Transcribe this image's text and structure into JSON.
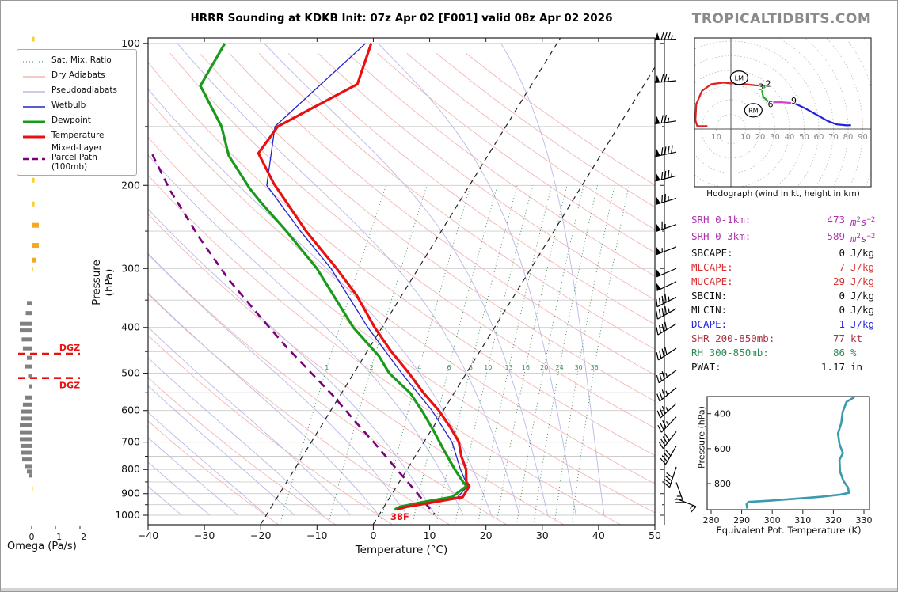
{
  "title": "HRRR Sounding at KDKB Init: 07z Apr 02 [F001] valid 08z Apr 02 2026",
  "watermark": "TROPICALTIDBITS.COM",
  "colors": {
    "temperature": "#e81010",
    "dewpoint": "#1a9a1a",
    "wetbulb": "#2222cc",
    "parcel": "#7a007a",
    "dry_adiabat": "#f2b6b6",
    "pseudoadiabat": "#b9b9e6",
    "mix_ratio": "#3a8a5a",
    "isotherm_dashed": "#222222",
    "grid": "#cccccc",
    "dgz": "#e81010",
    "omega_up": "#f7d038",
    "omega_up_strong": "#f5a623",
    "omega_down": "#808080",
    "thetae_line": "#3a9ab0",
    "hodo_seg_0_3": "#dd2222",
    "hodo_seg_3_6": "#22aa22",
    "hodo_seg_6_9": "#cc44cc",
    "hodo_seg_9_12": "#2222dd"
  },
  "legend": {
    "items": [
      {
        "label": "Sat. Mix. Ratio",
        "style": "mixratio"
      },
      {
        "label": "Dry Adiabats",
        "style": "dry"
      },
      {
        "label": "Pseudoadiabats",
        "style": "pseudo"
      },
      {
        "label": "Wetbulb",
        "style": "wetbulb"
      },
      {
        "label": "Dewpoint",
        "style": "dewpoint"
      },
      {
        "label": "Temperature",
        "style": "temperature"
      },
      {
        "label": "Mixed-Layer\nParcel Path (100mb)",
        "style": "parcel"
      }
    ]
  },
  "skewt": {
    "xlabel": "Temperature (°C)",
    "ylabel": "Pressure (hPa)",
    "x_ticks": [
      -40,
      -30,
      -20,
      -10,
      0,
      10,
      20,
      30,
      40,
      50
    ],
    "p_major_ticks": [
      100,
      200,
      300,
      400,
      500,
      600,
      700,
      800,
      900,
      1000
    ],
    "p_minor_ticks": [
      150,
      250,
      350,
      450,
      550,
      650,
      750,
      850,
      950
    ],
    "grid_pressures_step_mb": 50,
    "mix_ratio_values": [
      1,
      2,
      4,
      6,
      8,
      10,
      13,
      16,
      20,
      24,
      30,
      36
    ],
    "dashed_isotherms_c": [
      0,
      -20
    ],
    "surface_temp_label": "38F",
    "dgz_label": "DGZ",
    "dgz_pressures": [
      455,
      512
    ]
  },
  "omega": {
    "label": "Omega (Pa/s)",
    "ticks": [
      "0",
      "−1",
      "−2"
    ]
  },
  "hodograph": {
    "caption": "Hodograph (wind in kt, height in km)",
    "ring_step_kt": 10,
    "axis_labels_left": [
      "10"
    ],
    "axis_labels_right": [
      "10",
      "20",
      "30",
      "40",
      "50",
      "60",
      "70",
      "80",
      "90"
    ],
    "height_labels": {
      "1": [
        3,
        31.5
      ],
      "2": [
        25.5,
        30.5
      ],
      "3": [
        20.5,
        28.5
      ],
      "6": [
        27,
        16.5
      ],
      "9": [
        43,
        19
      ]
    },
    "storm_motion": {
      "LM": [
        5.6,
        35.0
      ],
      "RM": [
        15.3,
        12.8
      ]
    }
  },
  "stats": [
    {
      "label": "SRH 0-1km:",
      "value": "473",
      "unit": "m2s-2",
      "color": "#b030b0"
    },
    {
      "label": "SRH 0-3km:",
      "value": "589",
      "unit": "m2s-2",
      "color": "#b030b0"
    },
    {
      "label": "SBCAPE:",
      "value": "0",
      "unit": "J/kg",
      "color": "#111111"
    },
    {
      "label": "MLCAPE:",
      "value": "7",
      "unit": "J/kg",
      "color": "#d93030"
    },
    {
      "label": "MUCAPE:",
      "value": "29",
      "unit": "J/kg",
      "color": "#d93030"
    },
    {
      "label": "SBCIN:",
      "value": "0",
      "unit": "J/kg",
      "color": "#111111"
    },
    {
      "label": "MLCIN:",
      "value": "0",
      "unit": "J/kg",
      "color": "#111111"
    },
    {
      "label": "DCAPE:",
      "value": "1",
      "unit": "J/kg",
      "color": "#2828dd"
    },
    {
      "label": "SHR 200-850mb:",
      "value": "77",
      "unit": "kt",
      "color": "#aa3344"
    },
    {
      "label": "RH 300-850mb:",
      "value": "86",
      "unit": "%",
      "color": "#2e8b57"
    },
    {
      "label": "PWAT:",
      "value": "1.17",
      "unit": "in",
      "color": "#111111"
    }
  ],
  "thetae": {
    "caption": "Equivalent Pot. Temperature (K)",
    "ylabel": "Pressure (hPa)",
    "x_ticks": [
      280,
      290,
      300,
      310,
      320,
      330
    ],
    "y_ticks": [
      400,
      600,
      800
    ]
  },
  "wind_barbs": [
    {
      "p": 98,
      "kt": 85,
      "dir": 268
    },
    {
      "p": 120,
      "kt": 75,
      "dir": 265
    },
    {
      "p": 146,
      "kt": 75,
      "dir": 262
    },
    {
      "p": 170,
      "kt": 90,
      "dir": 258
    },
    {
      "p": 191,
      "kt": 85,
      "dir": 256
    },
    {
      "p": 213,
      "kt": 75,
      "dir": 253
    },
    {
      "p": 242,
      "kt": 65,
      "dir": 251
    },
    {
      "p": 270,
      "kt": 55,
      "dir": 249
    },
    {
      "p": 300,
      "kt": 50,
      "dir": 247
    },
    {
      "p": 320,
      "kt": 50,
      "dir": 245
    },
    {
      "p": 345,
      "kt": 45,
      "dir": 243
    },
    {
      "p": 365,
      "kt": 45,
      "dir": 241
    },
    {
      "p": 393,
      "kt": 40,
      "dir": 239
    },
    {
      "p": 443,
      "kt": 40,
      "dir": 237
    },
    {
      "p": 493,
      "kt": 35,
      "dir": 234
    },
    {
      "p": 537,
      "kt": 35,
      "dir": 231
    },
    {
      "p": 580,
      "kt": 35,
      "dir": 228
    },
    {
      "p": 619,
      "kt": 35,
      "dir": 224
    },
    {
      "p": 665,
      "kt": 38,
      "dir": 218
    },
    {
      "p": 713,
      "kt": 40,
      "dir": 210
    },
    {
      "p": 790,
      "kt": 40,
      "dir": 198
    },
    {
      "p": 852,
      "kt": 25,
      "dir": 160
    },
    {
      "p": 922,
      "kt": 15,
      "dir": 112
    }
  ],
  "chart_data": [
    {
      "type": "line",
      "name": "skewt_sounding",
      "title": "HRRR Sounding at KDKB",
      "xlabel": "Temperature (°C)",
      "ylabel": "Pressure (hPa)",
      "xlim": [
        -40,
        50
      ],
      "ylim_hpa": [
        100,
        1050
      ],
      "series": [
        {
          "name": "temperature_p_T",
          "points": [
            [
              100,
              -53
            ],
            [
              122,
              -51
            ],
            [
              150,
              -60.5
            ],
            [
              171,
              -61
            ],
            [
              198,
              -55
            ],
            [
              250,
              -44
            ],
            [
              300,
              -34.5
            ],
            [
              342,
              -28
            ],
            [
              400,
              -21.3
            ],
            [
              450,
              -15.7
            ],
            [
              500,
              -10.2
            ],
            [
              550,
              -5.5
            ],
            [
              600,
              -0.8
            ],
            [
              650,
              3.0
            ],
            [
              700,
              6.2
            ],
            [
              750,
              8.2
            ],
            [
              800,
              10.5
            ],
            [
              850,
              11.9
            ],
            [
              868,
              12.9
            ],
            [
              915,
              12.9
            ],
            [
              940,
              8.0
            ],
            [
              960,
              4.0
            ],
            [
              973,
              2.6
            ]
          ]
        },
        {
          "name": "dewpoint_p_T",
          "points": [
            [
              100,
              -79
            ],
            [
              123,
              -78.7
            ],
            [
              150,
              -70.5
            ],
            [
              173,
              -66
            ],
            [
              203,
              -58.7
            ],
            [
              218,
              -55
            ],
            [
              250,
              -47.5
            ],
            [
              300,
              -38
            ],
            [
              400,
              -25.1
            ],
            [
              460,
              -17.4
            ],
            [
              500,
              -13.7
            ],
            [
              552,
              -7.7
            ],
            [
              603,
              -3.6
            ],
            [
              664,
              0.6
            ],
            [
              729,
              4.5
            ],
            [
              800,
              8.5
            ],
            [
              850,
              11.3
            ],
            [
              868,
              12.4
            ],
            [
              915,
              11.0
            ],
            [
              940,
              6.0
            ],
            [
              960,
              2.8
            ],
            [
              973,
              2.2
            ]
          ]
        },
        {
          "name": "wetbulb_p_T",
          "points": [
            [
              100,
              -54
            ],
            [
              150,
              -61
            ],
            [
              200,
              -56
            ],
            [
              250,
              -45
            ],
            [
              300,
              -35.5
            ],
            [
              400,
              -22.5
            ],
            [
              500,
              -11.5
            ],
            [
              600,
              -2.0
            ],
            [
              700,
              5.0
            ],
            [
              800,
              9.5
            ],
            [
              868,
              12.6
            ],
            [
              915,
              12.0
            ],
            [
              950,
              5.0
            ],
            [
              973,
              2.4
            ]
          ]
        },
        {
          "name": "mixed_layer_parcel_p_T",
          "points": [
            [
              172,
              -79.7
            ],
            [
              205,
              -72.6
            ],
            [
              259,
              -62.1
            ],
            [
              317,
              -52.4
            ],
            [
              379,
              -42.9
            ],
            [
              441,
              -34.7
            ],
            [
              501,
              -27.4
            ],
            [
              559,
              -21.1
            ],
            [
              630,
              -14.7
            ],
            [
              707,
              -8.4
            ],
            [
              800,
              -1.8
            ],
            [
              891,
              4.0
            ],
            [
              996,
              9.8
            ]
          ]
        }
      ]
    },
    {
      "type": "line",
      "name": "hodograph_uv_kt",
      "segments": [
        {
          "layer": "0-3km",
          "color_key": "hodo_seg_0_3",
          "points": [
            [
              -16,
              2
            ],
            [
              -23,
              2
            ],
            [
              -24.2,
              6
            ],
            [
              -23.6,
              17
            ],
            [
              -19.8,
              26
            ],
            [
              -13.4,
              30.6
            ],
            [
              -5.2,
              31.7
            ],
            [
              2.9,
              30.8
            ],
            [
              9.9,
              30.6
            ],
            [
              17,
              29.8
            ],
            [
              25,
              29.6
            ]
          ]
        },
        {
          "layer": "3-6km",
          "color_key": "hodo_seg_3_6",
          "points": [
            [
              25,
              29.6
            ],
            [
              21,
              27.5
            ],
            [
              22,
              22
            ],
            [
              26.1,
              18.2
            ]
          ]
        },
        {
          "layer": "6-9km",
          "color_key": "hodo_seg_6_9",
          "points": [
            [
              26.1,
              18.2
            ],
            [
              34,
              18.3
            ],
            [
              42.9,
              17.7
            ]
          ]
        },
        {
          "layer": "9km+",
          "color_key": "hodo_seg_9_12",
          "points": [
            [
              42.9,
              17.7
            ],
            [
              50,
              14.5
            ],
            [
              58,
              10
            ],
            [
              66,
              5.5
            ],
            [
              72,
              3.2
            ],
            [
              79,
              2.5
            ],
            [
              82,
              2.6
            ]
          ]
        }
      ]
    },
    {
      "type": "line",
      "name": "equivalent_potential_temperature",
      "xlabel": "Equivalent Pot. Temperature (K)",
      "ylabel": "Pressure (hPa)",
      "xlim": [
        280,
        330
      ],
      "points_thetae_p": [
        [
          291.8,
          943
        ],
        [
          291.6,
          918
        ],
        [
          292.2,
          905
        ],
        [
          298.9,
          898
        ],
        [
          307.5,
          887
        ],
        [
          316.2,
          875
        ],
        [
          322.2,
          863
        ],
        [
          325.1,
          853
        ],
        [
          324.8,
          823
        ],
        [
          323.3,
          785
        ],
        [
          322.2,
          732
        ],
        [
          322.0,
          664
        ],
        [
          323.1,
          626
        ],
        [
          322.0,
          573
        ],
        [
          321.5,
          513
        ],
        [
          322.6,
          453
        ],
        [
          323.0,
          392
        ],
        [
          324.3,
          332
        ],
        [
          326.9,
          305
        ]
      ]
    },
    {
      "type": "bar",
      "name": "omega_profile_pa_s",
      "up_bars_p_w": [
        [
          98,
          -0.12
        ],
        [
          121,
          -0.1
        ],
        [
          150,
          -0.12
        ],
        [
          171,
          -0.14
        ],
        [
          195,
          -0.12
        ],
        [
          219,
          -0.12
        ],
        [
          243,
          -0.3
        ],
        [
          268,
          -0.3
        ],
        [
          288,
          -0.18
        ],
        [
          301,
          -0.06
        ],
        [
          879,
          -0.05
        ]
      ],
      "down_bars_p_w": [
        [
          355,
          0.2
        ],
        [
          373,
          0.25
        ],
        [
          393,
          0.5
        ],
        [
          406,
          0.5
        ],
        [
          424,
          0.42
        ],
        [
          443,
          0.37
        ],
        [
          464,
          0.2
        ],
        [
          484,
          0.3
        ],
        [
          508,
          0.15
        ],
        [
          533,
          0.1
        ],
        [
          563,
          0.3
        ],
        [
          583,
          0.37
        ],
        [
          603,
          0.45
        ],
        [
          624,
          0.47
        ],
        [
          645,
          0.5
        ],
        [
          667,
          0.5
        ],
        [
          690,
          0.5
        ],
        [
          713,
          0.47
        ],
        [
          737,
          0.45
        ],
        [
          762,
          0.4
        ],
        [
          787,
          0.3
        ],
        [
          808,
          0.2
        ],
        [
          824,
          0.12
        ]
      ]
    }
  ]
}
